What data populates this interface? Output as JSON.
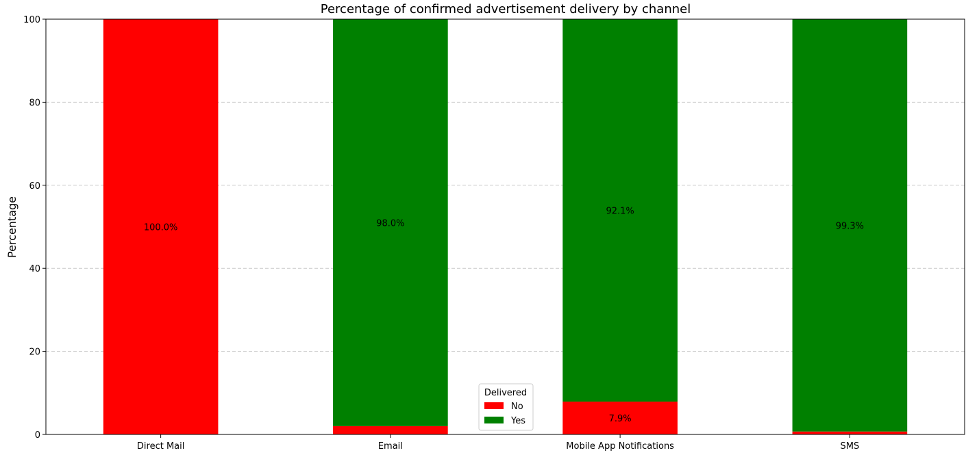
{
  "chart_data": {
    "type": "bar",
    "stacked": true,
    "title": "Percentage of confirmed advertisement delivery by channel",
    "xlabel": "",
    "ylabel": "Percentage",
    "ylim": [
      0,
      100
    ],
    "yticks": [
      0,
      20,
      40,
      60,
      80,
      100
    ],
    "grid": "y-dashed",
    "categories": [
      "Direct Mail",
      "Email",
      "Mobile App Notifications",
      "SMS"
    ],
    "series": [
      {
        "name": "No",
        "color": "#ff0000",
        "values": [
          100.0,
          2.0,
          7.9,
          0.7
        ],
        "labels": [
          "100.0%",
          "",
          "7.9%",
          ""
        ]
      },
      {
        "name": "Yes",
        "color": "#008000",
        "values": [
          0.0,
          98.0,
          92.1,
          99.3
        ],
        "labels": [
          "",
          "98.0%",
          "92.1%",
          "99.3%"
        ]
      }
    ],
    "legend": {
      "title": "Delivered",
      "placement": "bottom-center"
    }
  }
}
